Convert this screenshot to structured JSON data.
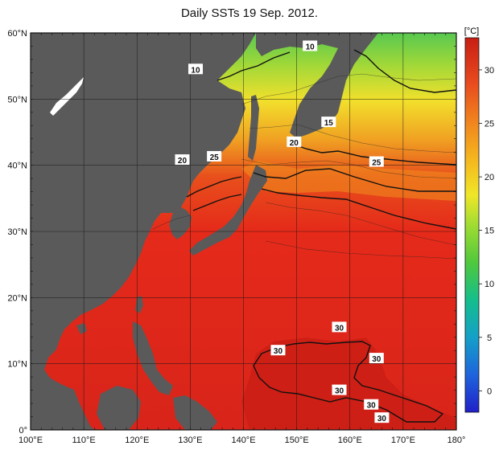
{
  "title": "Daily SSTs 19 Sep. 2012.",
  "map": {
    "lat_ticks": [
      {
        "value": 60,
        "label": "60°N"
      },
      {
        "value": 50,
        "label": "50°N"
      },
      {
        "value": 40,
        "label": "40°N"
      },
      {
        "value": 30,
        "label": "30°N"
      },
      {
        "value": 20,
        "label": "20°N"
      },
      {
        "value": 10,
        "label": "10°N"
      },
      {
        "value": 0,
        "label": "0°"
      }
    ],
    "lon_ticks": [
      {
        "value": 100,
        "label": "100°E"
      },
      {
        "value": 110,
        "label": "110°E"
      },
      {
        "value": 120,
        "label": "120°E"
      },
      {
        "value": 130,
        "label": "130°E"
      },
      {
        "value": 140,
        "label": "140°E"
      },
      {
        "value": 150,
        "label": "150°E"
      },
      {
        "value": 160,
        "label": "160°E"
      },
      {
        "value": 170,
        "label": "170°E"
      },
      {
        "value": 180,
        "label": "180°"
      }
    ],
    "lat_range": [
      0,
      60
    ],
    "lon_range": [
      100,
      180
    ],
    "contour_labels": [
      {
        "text": "10",
        "lon": 152.5,
        "lat": 58.0
      },
      {
        "text": "10",
        "lon": 131.0,
        "lat": 54.5
      },
      {
        "text": "15",
        "lon": 156.0,
        "lat": 46.5
      },
      {
        "text": "20",
        "lon": 149.5,
        "lat": 43.5
      },
      {
        "text": "20",
        "lon": 128.5,
        "lat": 40.8
      },
      {
        "text": "25",
        "lon": 134.5,
        "lat": 41.3
      },
      {
        "text": "25",
        "lon": 165.0,
        "lat": 40.5
      },
      {
        "text": "30",
        "lon": 158.0,
        "lat": 15.5
      },
      {
        "text": "30",
        "lon": 146.5,
        "lat": 12.0
      },
      {
        "text": "30",
        "lon": 165.0,
        "lat": 10.8
      },
      {
        "text": "30",
        "lon": 158.0,
        "lat": 6.0
      },
      {
        "text": "30",
        "lon": 164.0,
        "lat": 3.8
      },
      {
        "text": "30",
        "lon": 166.0,
        "lat": 1.8
      }
    ]
  },
  "colorbar": {
    "unit": "[°C]",
    "ticks": [
      "0",
      "5",
      "10",
      "15",
      "20",
      "25",
      "30"
    ],
    "min": -2,
    "max": 33
  },
  "colors": {
    "land": "#5a5a5a",
    "sea_warm": "#e52a1a",
    "sea_hot": "#c81e14",
    "orange": "#f0901e",
    "yellow": "#f5e632",
    "green": "#6ed24b"
  }
}
